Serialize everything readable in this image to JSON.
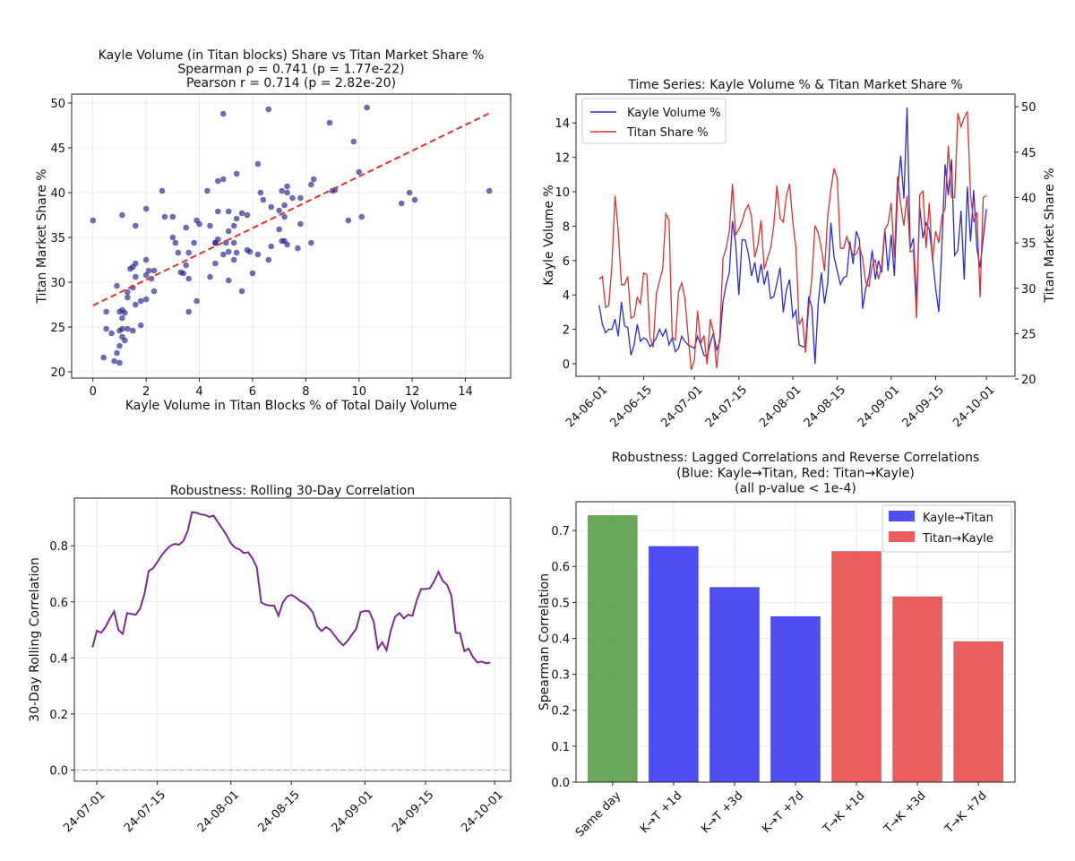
{
  "chart_data": [
    {
      "type": "scatter",
      "title_lines": [
        "Kayle Volume (in Titan blocks) Share vs Titan Market Share %",
        "Spearman ρ = 0.741 (p = 1.77e-22)",
        "Pearson r = 0.714 (p = 2.82e-20)"
      ],
      "xlabel": "Kayle Volume in Titan Blocks % of Total Daily Volume",
      "ylabel": "Titan Market Share %",
      "xlim": [
        -0.8,
        15.7
      ],
      "ylim": [
        19.3,
        51
      ],
      "xticks": [
        0,
        2,
        4,
        6,
        8,
        10,
        12,
        14
      ],
      "yticks": [
        20,
        25,
        30,
        35,
        40,
        45,
        50
      ],
      "grid": true,
      "point_color": "#1f1f8a",
      "trendline": {
        "x": [
          0,
          15
        ],
        "y": [
          27.4,
          49.0
        ],
        "color": "#e03030",
        "style": "dashed"
      },
      "points_from": "time-series pairs"
    },
    {
      "type": "line",
      "title": "Time Series: Kayle Volume % & Titan Market Share %",
      "ylabel": "Kayle Volume %",
      "y2label": "Titan Market Share %",
      "start_date": "2024-06-01",
      "ylim": [
        -0.73,
        15.68
      ],
      "y2lim": [
        20.3,
        51.4
      ],
      "yticks": [
        0,
        2,
        4,
        6,
        8,
        10,
        12,
        14
      ],
      "y2ticks": [
        20,
        25,
        30,
        35,
        40,
        45,
        50
      ],
      "xticks": [
        "24-06-01",
        "24-06-15",
        "24-07-01",
        "24-07-15",
        "24-08-01",
        "24-08-15",
        "24-09-01",
        "24-09-15",
        "24-10-01"
      ],
      "xtick_dates": [
        "2024-06-01",
        "2024-06-15",
        "2024-07-01",
        "2024-07-15",
        "2024-08-01",
        "2024-08-15",
        "2024-09-01",
        "2024-09-15",
        "2024-10-01"
      ],
      "legend": "top-left",
      "grid": false,
      "series": [
        {
          "name": "Kayle Volume %",
          "color": "#2a2ad8",
          "axis": "left",
          "values": [
            3.4,
            2.3,
            1.8,
            2.0,
            2.0,
            2.6,
            1.6,
            3.6,
            2.2,
            2.1,
            0.5,
            1.1,
            2.3,
            1.3,
            1.5,
            1.4,
            1.0,
            1.2,
            1.5,
            2.0,
            1.6,
            2.0,
            1.1,
            1.5,
            0.7,
            0.9,
            1.6,
            1.3,
            1.1,
            1.0,
            0.9,
            1.6,
            1.1,
            0.5,
            0.4,
            1.2,
            1.8,
            0.8,
            1.3,
            3.6,
            4.6,
            5.3,
            8.3,
            7.0,
            4.0,
            7.2,
            7.2,
            6.4,
            5.1,
            5.9,
            4.7,
            5.8,
            4.6,
            5.4,
            3.8,
            3.9,
            4.7,
            5.6,
            3.0,
            4.3,
            4.9,
            2.7,
            3.1,
            1.1,
            1.0,
            1.0,
            3.9,
            3.3,
            0.0,
            3.5,
            5.3,
            3.5,
            4.7,
            8.2,
            6.2,
            5.4,
            4.6,
            5.0,
            5.1,
            7.1,
            5.8,
            7.7,
            7.2,
            3.2,
            4.4,
            5.1,
            6.6,
            4.9,
            6.0,
            5.3,
            7.8,
            5.4,
            7.5,
            5.1,
            10.0,
            12.1,
            9.6,
            14.9,
            6.7,
            7.3,
            3.6,
            9.1,
            7.3,
            8.2,
            7.8,
            6.2,
            4.4,
            3.0,
            7.0,
            11.6,
            9.8,
            11.9,
            6.3,
            6.6,
            8.9,
            4.9,
            10.3,
            7.1,
            10.1,
            6.7,
            5.6,
            7.3,
            9.0
          ]
        },
        {
          "name": "Titan Share %",
          "color": "#d83030",
          "axis": "right",
          "values": [
            31.0,
            31.3,
            27.9,
            28.1,
            32.5,
            40.2,
            36.3,
            30.4,
            30.4,
            31.3,
            26.7,
            26.9,
            29.0,
            28.3,
            31.7,
            31.5,
            24.6,
            23.5,
            29.4,
            30.8,
            32.1,
            38.2,
            37.5,
            24.6,
            24.3,
            29.6,
            30.6,
            28.9,
            24.8,
            21.0,
            22.1,
            27.5,
            23.9,
            24.8,
            21.6,
            26.6,
            25.2,
            21.2,
            24.8,
            33.3,
            34.4,
            36.3,
            41.5,
            35.9,
            36.5,
            37.3,
            38.6,
            39.2,
            37.9,
            33.4,
            34.8,
            37.5,
            32.1,
            33.3,
            34.4,
            36.9,
            41.3,
            37.7,
            37.3,
            40.2,
            41.5,
            37.3,
            34.4,
            26.0,
            26.7,
            22.9,
            27.9,
            31.1,
            36.9,
            36.1,
            34.4,
            31.9,
            37.9,
            40.9,
            43.2,
            42.1,
            34.4,
            34.4,
            35.7,
            34.6,
            33.6,
            33.8,
            34.6,
            33.3,
            30.6,
            30.2,
            32.5,
            33.1,
            31.0,
            32.5,
            36.5,
            37.1,
            39.4,
            33.4,
            42.3,
            39.2,
            36.9,
            40.2,
            34.0,
            34.2,
            26.7,
            40.3,
            40.7,
            34.4,
            39.4,
            33.1,
            36.3,
            35.0,
            38.0,
            38.8,
            45.7,
            40.0,
            40.0,
            49.3,
            47.8,
            48.8,
            49.5,
            40.2,
            37.3,
            38.4,
            29.0,
            40.0,
            40.2
          ]
        }
      ]
    },
    {
      "type": "line",
      "title": "Robustness: Rolling 30-Day Correlation",
      "ylabel": "30-Day Rolling Correlation",
      "start_date": "2024-06-30",
      "ylim": [
        -0.04,
        0.97
      ],
      "yticks": [
        "0.0",
        "0.2",
        "0.4",
        "0.6",
        "0.8"
      ],
      "xticks": [
        "24-07-01",
        "24-07-15",
        "24-08-01",
        "24-08-15",
        "24-09-01",
        "24-09-15",
        "24-10-01"
      ],
      "xtick_dates": [
        "2024-07-01",
        "2024-07-15",
        "2024-08-01",
        "2024-08-15",
        "2024-09-01",
        "2024-09-15",
        "2024-10-01"
      ],
      "grid": true,
      "reference_line": {
        "y": 0,
        "color": "#aaaaaa",
        "style": "dashed"
      },
      "series": [
        {
          "color": "#7a2d8c",
          "values": [
            0.438,
            0.497,
            0.49,
            0.51,
            0.54,
            0.566,
            0.5,
            0.486,
            0.56,
            0.557,
            0.554,
            0.576,
            0.627,
            0.71,
            0.72,
            0.742,
            0.766,
            0.785,
            0.8,
            0.807,
            0.804,
            0.817,
            0.852,
            0.92,
            0.918,
            0.912,
            0.91,
            0.903,
            0.908,
            0.884,
            0.862,
            0.838,
            0.809,
            0.793,
            0.787,
            0.774,
            0.777,
            0.755,
            0.723,
            0.598,
            0.59,
            0.587,
            0.587,
            0.55,
            0.597,
            0.619,
            0.625,
            0.616,
            0.603,
            0.595,
            0.581,
            0.561,
            0.512,
            0.496,
            0.51,
            0.5,
            0.48,
            0.459,
            0.445,
            0.461,
            0.483,
            0.504,
            0.563,
            0.568,
            0.566,
            0.531,
            0.433,
            0.456,
            0.427,
            0.499,
            0.547,
            0.56,
            0.541,
            0.554,
            0.55,
            0.606,
            0.646,
            0.646,
            0.648,
            0.673,
            0.707,
            0.675,
            0.661,
            0.622,
            0.49,
            0.488,
            0.424,
            0.433,
            0.403,
            0.384,
            0.387,
            0.381,
            0.384
          ]
        }
      ]
    },
    {
      "type": "bar",
      "title_lines": [
        "Robustness: Lagged Correlations and Reverse Correlations",
        "(Blue: Kayle→Titan, Red: Titan→Kayle)",
        "(all p-value < 1e-4)"
      ],
      "ylabel": "Spearman Correlation",
      "ylim": [
        0,
        0.78
      ],
      "yticks": [
        "0.0",
        "0.1",
        "0.2",
        "0.3",
        "0.4",
        "0.5",
        "0.6",
        "0.7"
      ],
      "categories": [
        "Same day",
        "K→T +1d",
        "K→T +3d",
        "K→T +7d",
        "T→K +1d",
        "T→K +3d",
        "T→K +7d"
      ],
      "values": [
        0.741,
        0.655,
        0.541,
        0.46,
        0.641,
        0.515,
        0.39
      ],
      "colors": [
        "#5a9e4a",
        "#3c3cf0",
        "#3c3cf0",
        "#3c3cf0",
        "#e84c4c",
        "#e84c4c",
        "#e84c4c"
      ],
      "legend": "top-right",
      "legend_entries": [
        {
          "label": "Kayle→Titan",
          "color": "#3c3cf0"
        },
        {
          "label": "Titan→Kayle",
          "color": "#e84c4c"
        }
      ],
      "grid": true
    }
  ]
}
